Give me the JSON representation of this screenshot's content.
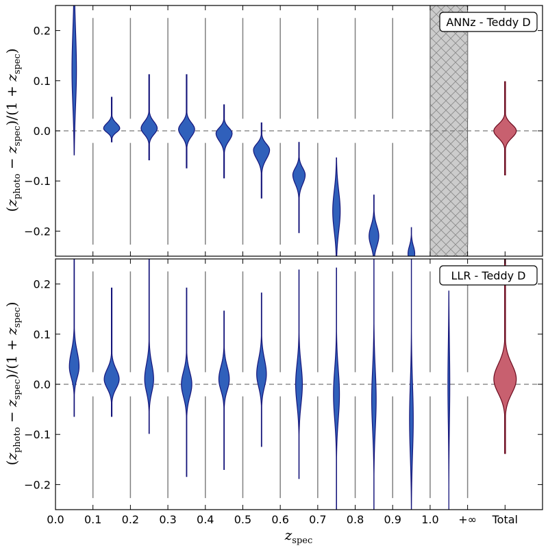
{
  "chart_data": {
    "type": "violin",
    "xlabel": "z_spec",
    "xlabel_main": "z",
    "xlabel_sub": "spec",
    "ylabel": "(z_photo − z_spec)/(1 + z_spec)",
    "ylabel_parts": {
      "open": "(",
      "z": "z",
      "sub_photo": "photo",
      "minus": " − ",
      "sub_spec": "spec",
      "mid": ")/(1 + ",
      "close": ")"
    },
    "xlim": [
      0.0,
      1.3
    ],
    "x_tick_labels": [
      "0.0",
      "0.1",
      "0.2",
      "0.3",
      "0.4",
      "0.5",
      "0.6",
      "0.7",
      "0.8",
      "0.9",
      "1.0",
      "+∞",
      "Total"
    ],
    "x_tick_values": [
      0.0,
      0.1,
      0.2,
      0.3,
      0.4,
      0.5,
      0.6,
      0.7,
      0.8,
      0.9,
      1.0,
      1.1,
      1.2
    ],
    "colors": {
      "violin_fill": "#3060bb",
      "violin_edge": "#14147a",
      "total_fill": "#c8606f",
      "total_edge": "#6a0a1e",
      "divider": "#808080",
      "hatch_fill": "#cccccc"
    },
    "panels": [
      {
        "legend": "ANNz - Teddy D",
        "ylim": [
          -0.25,
          0.25
        ],
        "y_ticks": [
          -0.2,
          -0.1,
          0.0,
          0.1,
          0.2
        ],
        "y_tick_labels": [
          "−0.2",
          "−0.1",
          "0.0",
          "0.1",
          "0.2"
        ],
        "hatched_bin": [
          1.0,
          1.1
        ],
        "violins": [
          {
            "x": 0.05,
            "ymin": -0.048,
            "ymax": 0.26,
            "peak": 0.12,
            "width": 0.012,
            "sd_lo": 0.07,
            "sd_hi": 0.08
          },
          {
            "x": 0.15,
            "ymin": -0.022,
            "ymax": 0.067,
            "peak": 0.005,
            "width": 0.043,
            "sd_lo": 0.008,
            "sd_hi": 0.01
          },
          {
            "x": 0.25,
            "ymin": -0.058,
            "ymax": 0.112,
            "peak": 0.005,
            "width": 0.043,
            "sd_lo": 0.012,
            "sd_hi": 0.013
          },
          {
            "x": 0.35,
            "ymin": -0.074,
            "ymax": 0.112,
            "peak": 0.003,
            "width": 0.043,
            "sd_lo": 0.014,
            "sd_hi": 0.013
          },
          {
            "x": 0.45,
            "ymin": -0.094,
            "ymax": 0.052,
            "peak": -0.005,
            "width": 0.043,
            "sd_lo": 0.015,
            "sd_hi": 0.011
          },
          {
            "x": 0.55,
            "ymin": -0.134,
            "ymax": 0.016,
            "peak": -0.038,
            "width": 0.043,
            "sd_lo": 0.018,
            "sd_hi": 0.012
          },
          {
            "x": 0.65,
            "ymin": -0.203,
            "ymax": -0.023,
            "peak": -0.088,
            "width": 0.033,
            "sd_lo": 0.018,
            "sd_hi": 0.014
          },
          {
            "x": 0.75,
            "ymin": -0.26,
            "ymax": -0.054,
            "peak": -0.16,
            "width": 0.02,
            "sd_lo": 0.04,
            "sd_hi": 0.04
          },
          {
            "x": 0.85,
            "ymin": -0.26,
            "ymax": -0.128,
            "peak": -0.21,
            "width": 0.026,
            "sd_lo": 0.02,
            "sd_hi": 0.02
          },
          {
            "x": 0.95,
            "ymin": -0.26,
            "ymax": -0.193,
            "peak": -0.245,
            "width": 0.018,
            "sd_lo": 0.015,
            "sd_hi": 0.015
          }
        ],
        "total": {
          "x": 1.2,
          "ymin": -0.088,
          "ymax": 0.098,
          "peak": 0.0,
          "width": 0.06,
          "sd_lo": 0.014,
          "sd_hi": 0.013
        }
      },
      {
        "legend": "LLR - Teddy D",
        "ylim": [
          -0.25,
          0.25
        ],
        "y_ticks": [
          -0.2,
          -0.1,
          0.0,
          0.1,
          0.2
        ],
        "y_tick_labels": [
          "−0.2",
          "−0.1",
          "0.0",
          "0.1",
          "0.2"
        ],
        "hatched_bin": null,
        "violins": [
          {
            "x": 0.05,
            "ymin": -0.064,
            "ymax": 0.26,
            "peak": 0.035,
            "width": 0.026,
            "sd_lo": 0.022,
            "sd_hi": 0.03
          },
          {
            "x": 0.15,
            "ymin": -0.064,
            "ymax": 0.192,
            "peak": 0.01,
            "width": 0.04,
            "sd_lo": 0.018,
            "sd_hi": 0.02
          },
          {
            "x": 0.25,
            "ymin": -0.098,
            "ymax": 0.26,
            "peak": 0.01,
            "width": 0.024,
            "sd_lo": 0.025,
            "sd_hi": 0.03
          },
          {
            "x": 0.35,
            "ymin": -0.184,
            "ymax": 0.192,
            "peak": 0.0,
            "width": 0.028,
            "sd_lo": 0.025,
            "sd_hi": 0.025
          },
          {
            "x": 0.45,
            "ymin": -0.17,
            "ymax": 0.146,
            "peak": 0.01,
            "width": 0.028,
            "sd_lo": 0.022,
            "sd_hi": 0.025
          },
          {
            "x": 0.55,
            "ymin": -0.124,
            "ymax": 0.182,
            "peak": 0.02,
            "width": 0.026,
            "sd_lo": 0.025,
            "sd_hi": 0.03
          },
          {
            "x": 0.65,
            "ymin": -0.188,
            "ymax": 0.228,
            "peak": 0.0,
            "width": 0.018,
            "sd_lo": 0.04,
            "sd_hi": 0.04
          },
          {
            "x": 0.75,
            "ymin": -0.26,
            "ymax": 0.232,
            "peak": -0.02,
            "width": 0.016,
            "sd_lo": 0.05,
            "sd_hi": 0.05
          },
          {
            "x": 0.85,
            "ymin": -0.26,
            "ymax": 0.26,
            "peak": -0.03,
            "width": 0.012,
            "sd_lo": 0.06,
            "sd_hi": 0.06
          },
          {
            "x": 0.95,
            "ymin": -0.26,
            "ymax": 0.26,
            "peak": -0.07,
            "width": 0.01,
            "sd_lo": 0.07,
            "sd_hi": 0.07
          },
          {
            "x": 1.05,
            "ymin": -0.26,
            "ymax": 0.186,
            "peak": 0.0,
            "width": 0.005,
            "sd_lo": 0.08,
            "sd_hi": 0.08
          }
        ],
        "total": {
          "x": 1.2,
          "ymin": -0.138,
          "ymax": 0.26,
          "peak": 0.01,
          "width": 0.06,
          "sd_lo": 0.028,
          "sd_hi": 0.03
        }
      }
    ]
  }
}
